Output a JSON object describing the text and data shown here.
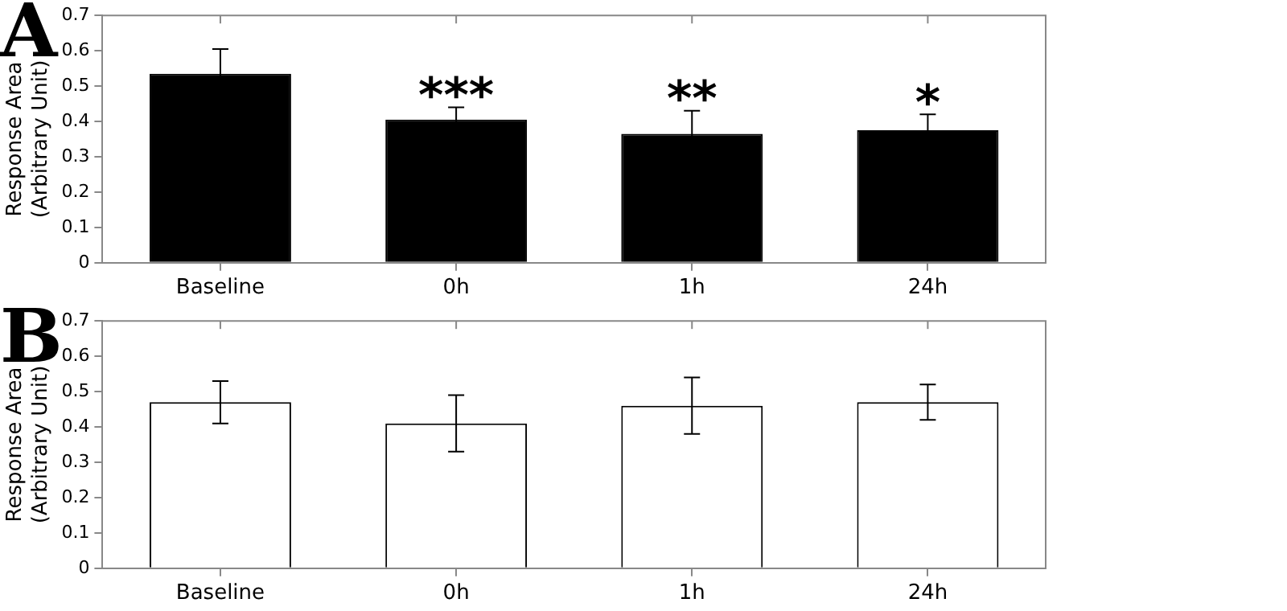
{
  "chart_data": [
    {
      "type": "bar",
      "ylabel": "Response Area\n(Arbitrary Unit)",
      "categories": [
        "Baseline",
        "0h",
        "1h",
        "24h"
      ],
      "values": [
        0.535,
        0.405,
        0.365,
        0.375
      ],
      "errors": [
        0.07,
        0.035,
        0.065,
        0.045
      ],
      "color": "#000000",
      "ylim": [
        0,
        0.7
      ],
      "yticks": [
        0,
        0.1,
        0.2,
        0.3,
        0.4,
        0.5,
        0.6,
        0.7
      ],
      "grid": false,
      "legend": false,
      "annotations": [
        "A",
        "***",
        "**",
        "*"
      ]
    },
    {
      "type": "bar",
      "ylabel": "Response Area\n(Arbitrary Unit)",
      "categories": [
        "Baseline",
        "0h",
        "1h",
        "24h"
      ],
      "values": [
        0.47,
        0.41,
        0.46,
        0.47
      ],
      "errors": [
        0.06,
        0.08,
        0.08,
        0.05
      ],
      "color": "#ffffff",
      "ylim": [
        0,
        0.7
      ],
      "yticks": [
        0,
        0.1,
        0.2,
        0.3,
        0.4,
        0.5,
        0.6,
        0.7
      ],
      "grid": false,
      "legend": false,
      "annotations": [
        "B"
      ]
    }
  ]
}
